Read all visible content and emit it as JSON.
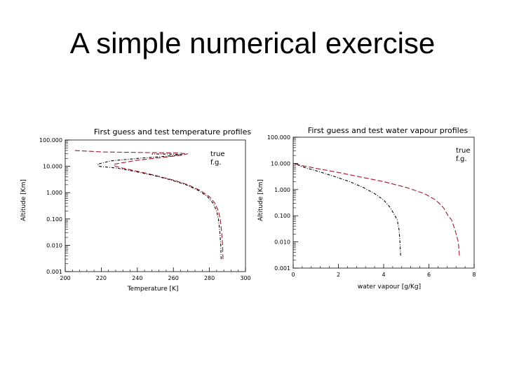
{
  "slide": {
    "title": "A simple numerical exercise"
  },
  "colors": {
    "true": "#a0182a",
    "fg": "#000000",
    "axis": "#000000"
  },
  "chart_data": [
    {
      "type": "line",
      "title": "First guess and test temperature profiles",
      "xlabel": "Temperature [K]",
      "ylabel": "Altitude [Km]",
      "xlim": [
        200,
        300
      ],
      "ylim": [
        0.001,
        100
      ],
      "yscale": "log",
      "xticks": [
        "200",
        "220",
        "240",
        "260",
        "280",
        "300"
      ],
      "xtick_values": [
        200,
        220,
        240,
        260,
        280,
        300
      ],
      "yticks": [
        "100.000",
        "10.000",
        "1.000",
        "0.100",
        "0.010",
        "0.001"
      ],
      "ytick_values": [
        100,
        10,
        1,
        0.1,
        0.01,
        0.001
      ],
      "legend_position": "top-right",
      "series": [
        {
          "name": "true",
          "color": "#a0182a",
          "style": "dashed",
          "x": [
            287.5,
            287.3,
            286.8,
            286.0,
            285.0,
            283.0,
            280.0,
            275.0,
            268.0,
            260.0,
            250.0,
            240.0,
            232.0,
            228.0,
            227.0,
            227.0,
            240.0,
            255.0,
            265.0,
            268.0,
            262.0,
            250.0,
            235.0,
            221.0,
            205.0
          ],
          "y": [
            0.003,
            0.01,
            0.03,
            0.1,
            0.2,
            0.4,
            0.7,
            1.2,
            2.0,
            3.0,
            4.5,
            6.5,
            8.5,
            10.0,
            11.0,
            12.0,
            17.0,
            22.0,
            27.0,
            30.0,
            32.0,
            33.0,
            34.0,
            35.0,
            40.0
          ]
        },
        {
          "name": "f.g.",
          "color": "#000000",
          "style": "dash-dot",
          "x": [
            286.5,
            286.3,
            285.8,
            285.0,
            284.0,
            282.0,
            279.0,
            274.0,
            267.0,
            259.0,
            249.0,
            238.0,
            229.0,
            219.0,
            218.0,
            225.0,
            240.0,
            252.0,
            261.0,
            265.0,
            259.0,
            248.0
          ],
          "y": [
            0.003,
            0.01,
            0.03,
            0.1,
            0.2,
            0.4,
            0.7,
            1.2,
            2.0,
            3.0,
            4.5,
            6.5,
            8.5,
            10.0,
            12.0,
            16.0,
            20.0,
            23.0,
            26.0,
            28.0,
            29.0,
            29.5
          ]
        }
      ]
    },
    {
      "type": "line",
      "title": "First guess and test water vapour profiles",
      "xlabel": "water vapour [g/Kg]",
      "ylabel": "Altitude [Km]",
      "xlim": [
        0,
        8
      ],
      "ylim": [
        0.001,
        100
      ],
      "yscale": "log",
      "xticks": [
        "0",
        "2",
        "4",
        "6",
        "8"
      ],
      "xtick_values": [
        0,
        2,
        4,
        6,
        8
      ],
      "yticks": [
        "100.000",
        "10.000",
        "1.000",
        "0.100",
        "0.010",
        "0.001"
      ],
      "ytick_values": [
        100,
        10,
        1,
        0.1,
        0.01,
        0.001
      ],
      "legend_position": "top-right",
      "series": [
        {
          "name": "true",
          "color": "#a0182a",
          "style": "dashed",
          "x": [
            7.35,
            7.3,
            7.15,
            7.0,
            6.85,
            6.65,
            6.3,
            5.8,
            5.0,
            4.0,
            3.0,
            2.0,
            1.0,
            0.3,
            0.05
          ],
          "y": [
            0.003,
            0.01,
            0.03,
            0.07,
            0.1,
            0.2,
            0.4,
            0.7,
            1.2,
            2.0,
            3.0,
            4.5,
            6.5,
            8.5,
            10.0
          ]
        },
        {
          "name": "f.g.",
          "color": "#000000",
          "style": "dash-dot",
          "x": [
            4.75,
            4.72,
            4.68,
            4.6,
            4.5,
            4.3,
            4.0,
            3.6,
            3.1,
            2.5,
            1.8,
            1.1,
            0.5,
            0.1
          ],
          "y": [
            0.003,
            0.01,
            0.03,
            0.07,
            0.1,
            0.2,
            0.4,
            0.7,
            1.2,
            2.0,
            3.2,
            5.0,
            7.0,
            9.5
          ]
        }
      ]
    }
  ]
}
